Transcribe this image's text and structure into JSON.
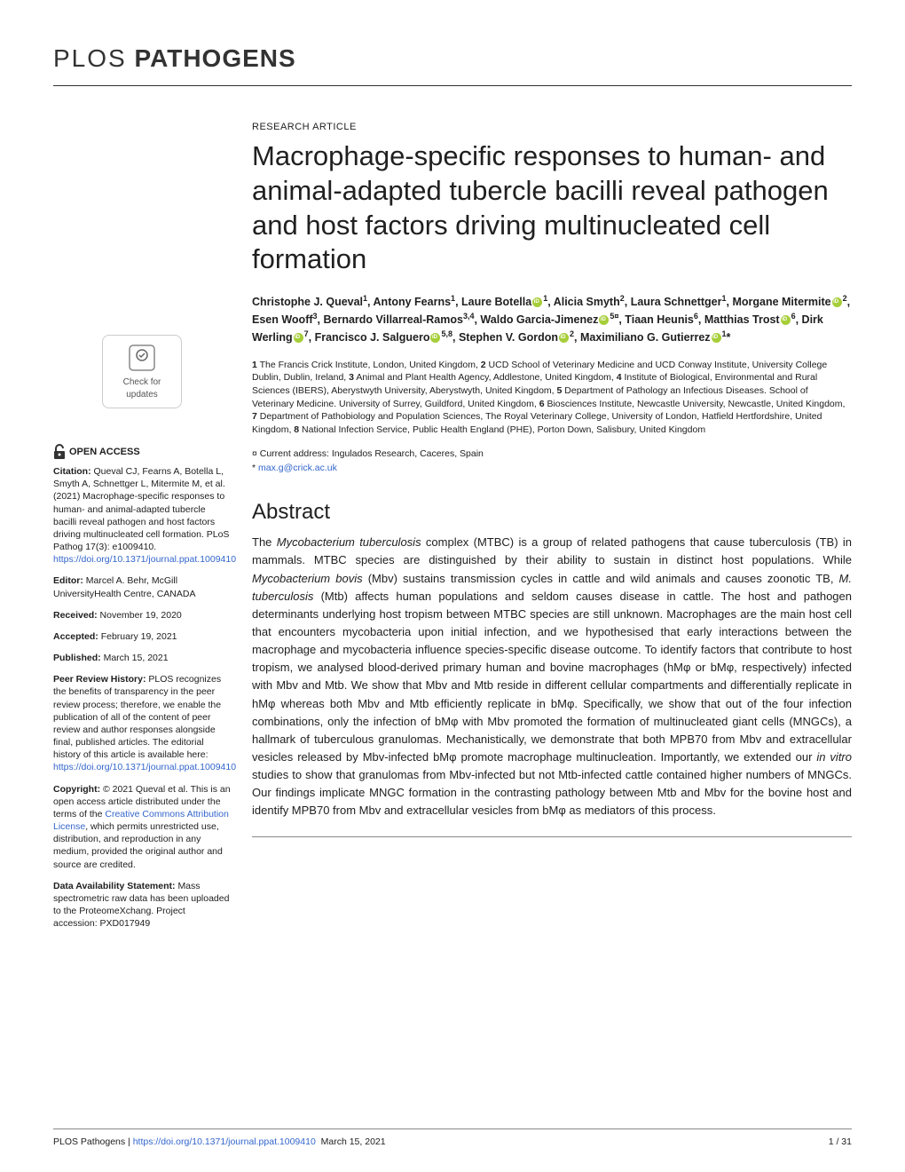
{
  "journal": {
    "logo_prefix": "PLOS",
    "logo_name": "PATHOGENS",
    "name_full": "PLOS Pathogens"
  },
  "article": {
    "type": "RESEARCH ARTICLE",
    "title": "Macrophage-specific responses to human- and animal-adapted tubercle bacilli reveal pathogen and host factors driving multinucleated cell formation",
    "authors_html": "Christophe J. Queval<sup>1</sup>, Antony Fearns<sup>1</sup>, Laure Botella<span class='orcid'></span><sup>1</sup>, Alicia Smyth<sup>2</sup>, Laura Schnettger<sup>1</sup>, Morgane Mitermite<span class='orcid'></span><sup>2</sup>, Esen Wooff<sup>3</sup>, Bernardo Villarreal-Ramos<sup>3,4</sup>, Waldo Garcia-Jimenez<span class='orcid'></span><sup>5¤</sup>, Tiaan Heunis<sup>6</sup>, Matthias Trost<span class='orcid'></span><sup>6</sup>, Dirk Werling<span class='orcid'></span><sup>7</sup>, Francisco J. Salguero<span class='orcid'></span><sup>5,8</sup>, Stephen V. Gordon<span class='orcid'></span><sup>2</sup>, Maximiliano G. Gutierrez<span class='orcid'></span><sup>1</sup>*",
    "affiliations": "1 The Francis Crick Institute, London, United Kingdom, 2 UCD School of Veterinary Medicine and UCD Conway Institute, University College Dublin, Dublin, Ireland, 3 Animal and Plant Health Agency, Addlestone, United Kingdom, 4 Institute of Biological, Environmental and Rural Sciences (IBERS), Aberystwyth University, Aberystwyth, United Kingdom, 5 Department of Pathology an Infectious Diseases. School of Veterinary Medicine. University of Surrey, Guildford, United Kingdom, 6 Biosciences Institute, Newcastle University, Newcastle, United Kingdom, 7 Department of Pathobiology and Population Sciences, The Royal Veterinary College, University of London, Hatfield Hertfordshire, United Kingdom, 8 National Infection Service, Public Health England (PHE), Porton Down, Salisbury, United Kingdom",
    "current_address": "¤ Current address: Ingulados Research, Caceres, Spain",
    "corr_email": "max.g@crick.ac.uk"
  },
  "abstract": {
    "heading": "Abstract",
    "text_html": "The <span class='ital'>Mycobacterium tuberculosis</span> complex (MTBC) is a group of related pathogens that cause tuberculosis (TB) in mammals. MTBC species are distinguished by their ability to sustain in distinct host populations. While <span class='ital'>Mycobacterium bovis</span> (Mbv) sustains transmission cycles in cattle and wild animals and causes zoonotic TB, <span class='ital'>M. tuberculosis</span> (Mtb) affects human populations and seldom causes disease in cattle. The host and pathogen determinants underlying host tropism between MTBC species are still unknown. Macrophages are the main host cell that encounters mycobacteria upon initial infection, and we hypothesised that early interactions between the macrophage and mycobacteria influence species-specific disease outcome. To identify factors that contribute to host tropism, we analysed blood-derived primary human and bovine macrophages (hMφ or bMφ, respectively) infected with Mbv and Mtb. We show that Mbv and Mtb reside in different cellular compartments and differentially replicate in hMφ whereas both Mbv and Mtb efficiently replicate in bMφ. Specifically, we show that out of the four infection combinations, only the infection of bMφ with Mbv promoted the formation of multinucleated giant cells (MNGCs), a hallmark of tuberculous granulomas. Mechanistically, we demonstrate that both MPB70 from Mbv and extracellular vesicles released by Mbv-infected bMφ promote macrophage multinucleation. Importantly, we extended our <span class='ital'>in vitro</span> studies to show that granulomas from Mbv-infected but not Mtb-infected cattle contained higher numbers of MNGCs. Our findings implicate MNGC formation in the contrasting pathology between Mtb and Mbv for the bovine host and identify MPB70 from Mbv and extracellular vesicles from bMφ as mediators of this process."
  },
  "sidebar": {
    "check_updates": "Check for updates",
    "open_access": "OPEN ACCESS",
    "citation_label": "Citation:",
    "citation": "Queval CJ, Fearns A, Botella L, Smyth A, Schnettger L, Mitermite M, et al. (2021) Macrophage-specific responses to human- and animal-adapted tubercle bacilli reveal pathogen and host factors driving multinucleated cell formation. PLoS Pathog 17(3): e1009410.",
    "doi_link": "https://doi.org/10.1371/journal.ppat.1009410",
    "editor_label": "Editor:",
    "editor": "Marcel A. Behr, McGill UniversityHealth Centre, CANADA",
    "received_label": "Received:",
    "received": "November 19, 2020",
    "accepted_label": "Accepted:",
    "accepted": "February 19, 2021",
    "published_label": "Published:",
    "published": "March 15, 2021",
    "peer_label": "Peer Review History:",
    "peer": "PLOS recognizes the benefits of transparency in the peer review process; therefore, we enable the publication of all of the content of peer review and author responses alongside final, published articles. The editorial history of this article is available here:",
    "peer_link": "https://doi.org/10.1371/journal.ppat.1009410",
    "copyright_label": "Copyright:",
    "copyright_pre": "© 2021 Queval et al. This is an open access article distributed under the terms of the",
    "cc_link_text": "Creative Commons Attribution License",
    "copyright_post": ", which permits unrestricted use, distribution, and reproduction in any medium, provided the original author and source are credited.",
    "data_label": "Data Availability Statement:",
    "data": "Mass spectrometric raw data has been uploaded to the ProteomeXchang. Project accession: PXD017949"
  },
  "footer": {
    "left_prefix": "PLOS Pathogens | ",
    "doi": "https://doi.org/10.1371/journal.ppat.1009410",
    "date": "March 15, 2021",
    "page": "1 / 31"
  },
  "colors": {
    "link": "#3366cc",
    "orcid": "#a6ce39",
    "text": "#202020",
    "rule": "#888888"
  }
}
